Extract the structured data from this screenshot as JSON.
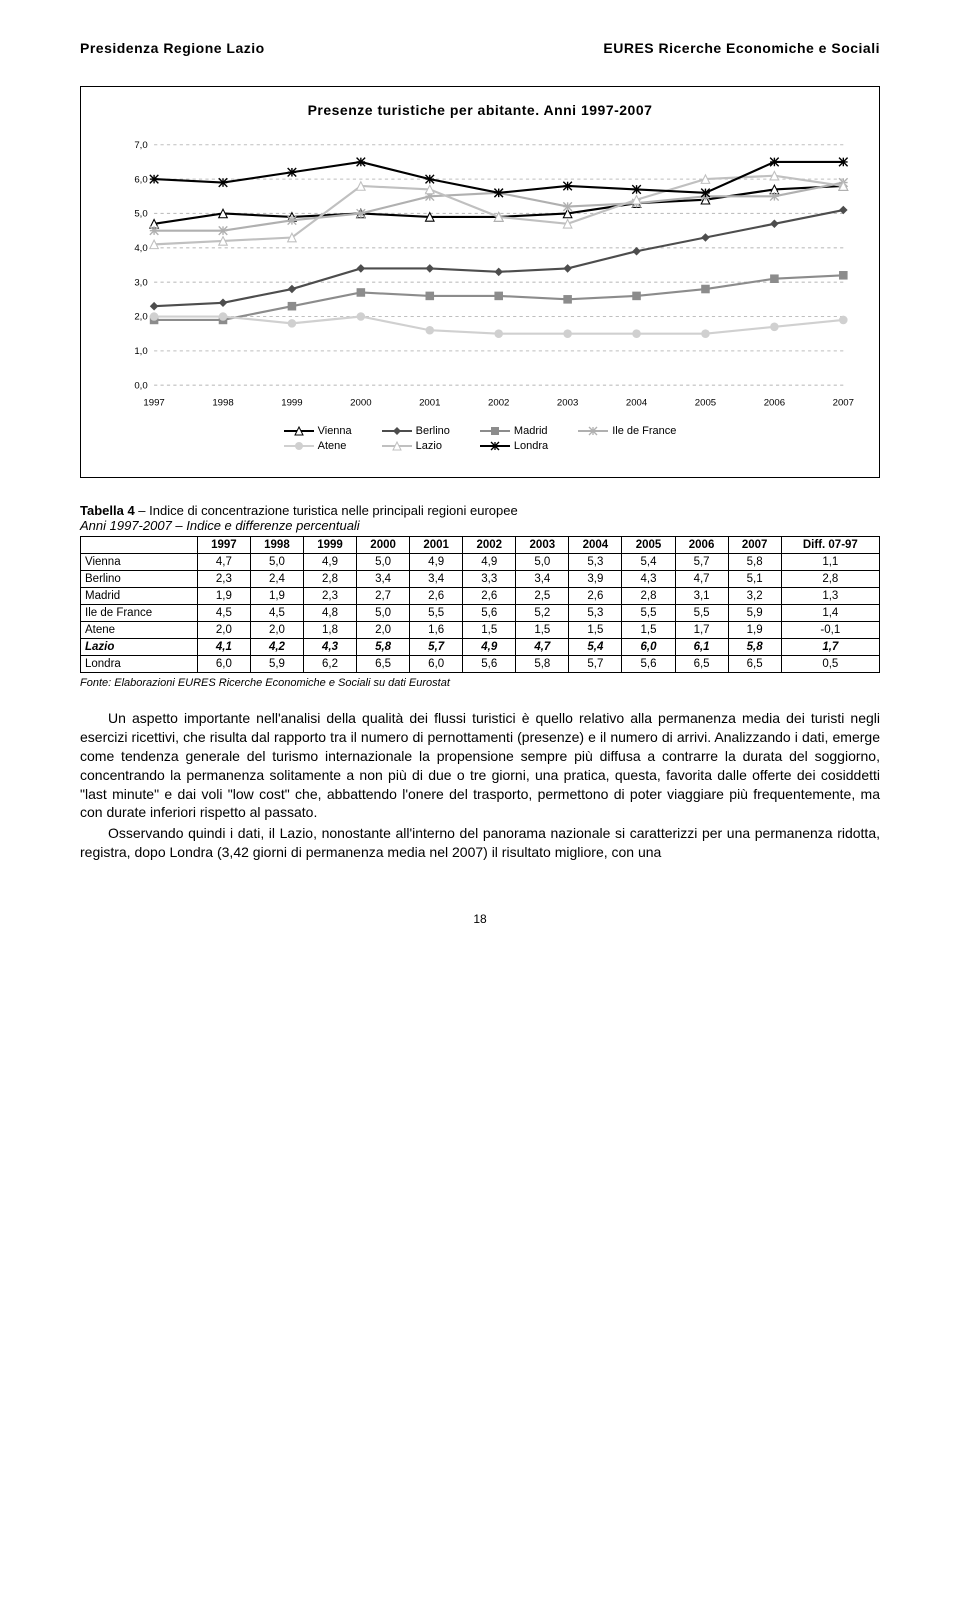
{
  "header": {
    "left": "Presidenza Regione Lazio",
    "right": "EURES Ricerche Economiche e Sociali"
  },
  "chart": {
    "type": "line",
    "title": "Presenze turistiche per abitante. Anni 1997-2007",
    "x_labels": [
      "1997",
      "1998",
      "1999",
      "2000",
      "2001",
      "2002",
      "2003",
      "2004",
      "2005",
      "2006",
      "2007"
    ],
    "y_min": 0.0,
    "y_max": 7.0,
    "y_step": 1.0,
    "y_tick_labels": [
      "0,0",
      "1,0",
      "2,0",
      "3,0",
      "4,0",
      "5,0",
      "6,0",
      "7,0"
    ],
    "grid_color": "#bfbfbf",
    "background_color": "#ffffff",
    "axis_fontsize": 9,
    "series": [
      {
        "name": "Vienna",
        "color": "#000000",
        "marker": "triangle",
        "values": [
          4.7,
          5.0,
          4.9,
          5.0,
          4.9,
          4.9,
          5.0,
          5.3,
          5.4,
          5.7,
          5.8
        ]
      },
      {
        "name": "Berlino",
        "color": "#4d4d4d",
        "marker": "diamond",
        "values": [
          2.3,
          2.4,
          2.8,
          3.4,
          3.4,
          3.3,
          3.4,
          3.9,
          4.3,
          4.7,
          5.1
        ]
      },
      {
        "name": "Madrid",
        "color": "#8c8c8c",
        "marker": "square",
        "values": [
          1.9,
          1.9,
          2.3,
          2.7,
          2.6,
          2.6,
          2.5,
          2.6,
          2.8,
          3.1,
          3.2
        ]
      },
      {
        "name": "Ile de France",
        "color": "#b0b0b0",
        "marker": "star",
        "values": [
          4.5,
          4.5,
          4.8,
          5.0,
          5.5,
          5.6,
          5.2,
          5.3,
          5.5,
          5.5,
          5.9
        ]
      },
      {
        "name": "Atene",
        "color": "#d0d0d0",
        "marker": "circle",
        "values": [
          2.0,
          2.0,
          1.8,
          2.0,
          1.6,
          1.5,
          1.5,
          1.5,
          1.5,
          1.7,
          1.9
        ]
      },
      {
        "name": "Lazio",
        "color": "#c0c0c0",
        "marker": "triangle",
        "values": [
          4.1,
          4.2,
          4.3,
          5.8,
          5.7,
          4.9,
          4.7,
          5.4,
          6.0,
          6.1,
          5.8
        ]
      },
      {
        "name": "Londra",
        "color": "#000000",
        "marker": "asterisk",
        "values": [
          6.0,
          5.9,
          6.2,
          6.5,
          6.0,
          5.6,
          5.8,
          5.7,
          5.6,
          6.5,
          6.5
        ]
      }
    ],
    "legend_layout": [
      [
        "Vienna",
        "Atene"
      ],
      [
        "Berlino",
        "Lazio"
      ],
      [
        "Madrid",
        "Londra"
      ],
      [
        "Ile de France"
      ]
    ]
  },
  "table": {
    "type": "table",
    "caption_bold": "Tabella 4",
    "caption_rest": " – Indice di concentrazione turistica nelle principali regioni europee",
    "caption_line2": "Anni 1997-2007 – Indice e differenze percentuali",
    "columns": [
      "",
      "1997",
      "1998",
      "1999",
      "2000",
      "2001",
      "2002",
      "2003",
      "2004",
      "2005",
      "2006",
      "2007",
      "Diff. 07-97"
    ],
    "rows": [
      {
        "label": "Vienna",
        "cells": [
          "4,7",
          "5,0",
          "4,9",
          "5,0",
          "4,9",
          "4,9",
          "5,0",
          "5,3",
          "5,4",
          "5,7",
          "5,8",
          "1,1"
        ],
        "em": false
      },
      {
        "label": "Berlino",
        "cells": [
          "2,3",
          "2,4",
          "2,8",
          "3,4",
          "3,4",
          "3,3",
          "3,4",
          "3,9",
          "4,3",
          "4,7",
          "5,1",
          "2,8"
        ],
        "em": false
      },
      {
        "label": "Madrid",
        "cells": [
          "1,9",
          "1,9",
          "2,3",
          "2,7",
          "2,6",
          "2,6",
          "2,5",
          "2,6",
          "2,8",
          "3,1",
          "3,2",
          "1,3"
        ],
        "em": false
      },
      {
        "label": "Ile de France",
        "cells": [
          "4,5",
          "4,5",
          "4,8",
          "5,0",
          "5,5",
          "5,6",
          "5,2",
          "5,3",
          "5,5",
          "5,5",
          "5,9",
          "1,4"
        ],
        "em": false
      },
      {
        "label": "Atene",
        "cells": [
          "2,0",
          "2,0",
          "1,8",
          "2,0",
          "1,6",
          "1,5",
          "1,5",
          "1,5",
          "1,5",
          "1,7",
          "1,9",
          "-0,1"
        ],
        "em": false
      },
      {
        "label": "Lazio",
        "cells": [
          "4,1",
          "4,2",
          "4,3",
          "5,8",
          "5,7",
          "4,9",
          "4,7",
          "5,4",
          "6,0",
          "6,1",
          "5,8",
          "1,7"
        ],
        "em": true
      },
      {
        "label": "Londra",
        "cells": [
          "6,0",
          "5,9",
          "6,2",
          "6,5",
          "6,0",
          "5,6",
          "5,8",
          "5,7",
          "5,6",
          "6,5",
          "6,5",
          "0,5"
        ],
        "em": false
      }
    ],
    "source": "Fonte: Elaborazioni EURES Ricerche Economiche e Sociali su dati Eurostat"
  },
  "paragraphs": [
    "Un aspetto importante nell'analisi della qualità dei flussi turistici è quello relativo alla permanenza media dei turisti negli esercizi ricettivi, che risulta dal rapporto tra il numero di pernottamenti (presenze) e il numero di arrivi. Analizzando i dati, emerge come tendenza generale del turismo internazionale la propensione sempre più diffusa a contrarre la durata del soggiorno, concentrando la permanenza solitamente a non più di due o tre giorni, una pratica, questa, favorita dalle offerte dei cosiddetti \"last minute\" e dai voli \"low cost\" che, abbattendo l'onere del trasporto, permettono di poter viaggiare più frequentemente, ma con durate inferiori rispetto al passato.",
    "Osservando quindi i dati, il Lazio, nonostante all'interno del panorama nazionale si caratterizzi per una permanenza ridotta, registra, dopo Londra (3,42 giorni di permanenza media nel 2007) il risultato migliore, con una"
  ],
  "page_number": "18"
}
